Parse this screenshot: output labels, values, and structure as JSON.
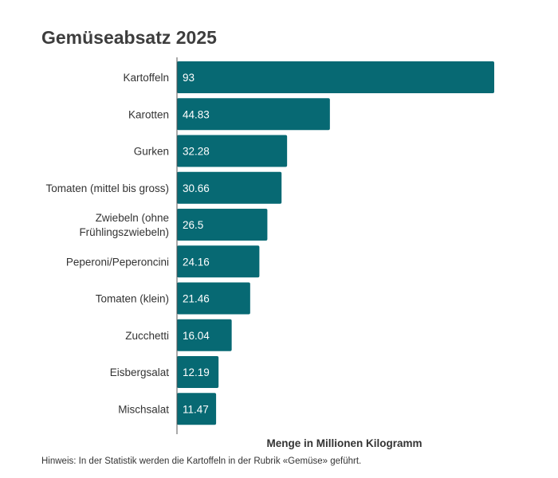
{
  "chart_data": {
    "type": "bar",
    "orientation": "horizontal",
    "title": "Gemüseabsatz 2025",
    "xlabel": "Menge in Millionen Kilogramm",
    "ylabel": "",
    "xlim": [
      0,
      93
    ],
    "categories": [
      [
        "Kartoffeln"
      ],
      [
        "Karotten"
      ],
      [
        "Gurken"
      ],
      [
        "Tomaten (mittel bis gross)"
      ],
      [
        "Zwiebeln (ohne",
        "Frühlingszwiebeln)"
      ],
      [
        "Peperoni/Peperoncini"
      ],
      [
        "Tomaten (klein)"
      ],
      [
        "Zucchetti"
      ],
      [
        "Eisbergsalat"
      ],
      [
        "Mischsalat"
      ]
    ],
    "values": [
      93,
      44.83,
      32.28,
      30.66,
      26.5,
      24.16,
      21.46,
      16.04,
      12.19,
      11.47
    ],
    "value_labels": [
      "93",
      "44.83",
      "32.28",
      "30.66",
      "26.5",
      "24.16",
      "21.46",
      "16.04",
      "12.19",
      "11.47"
    ],
    "bar_color": "#076973",
    "grid": false,
    "note": "Hinweis: In der Statistik werden die Kartoffeln in der Rubrik «Gemüse» geführt."
  }
}
